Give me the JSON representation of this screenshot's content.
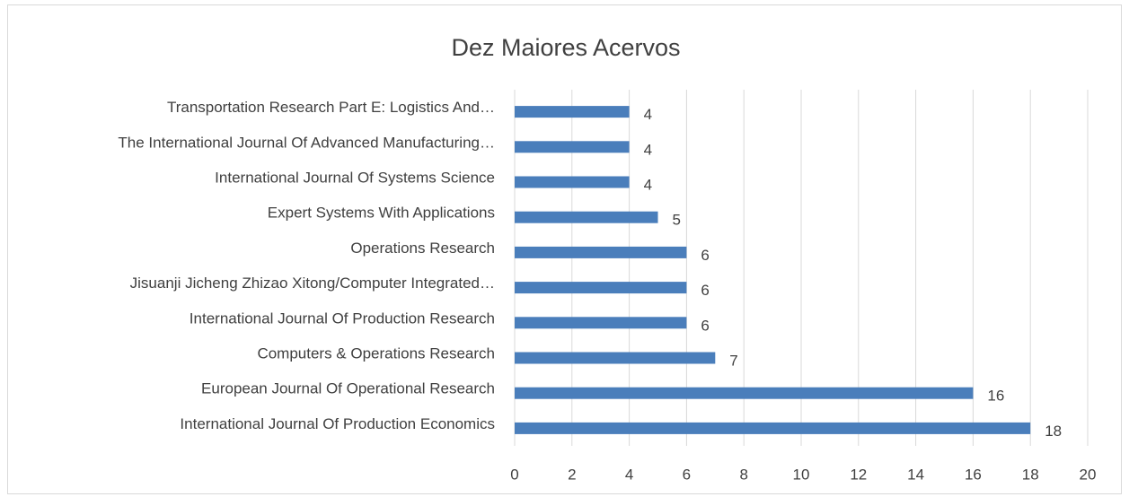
{
  "chart_data": {
    "type": "hbar",
    "title": "Dez Maiores Acervos",
    "categories": [
      "Transportation Research Part E: Logistics And…",
      "The International Journal Of Advanced Manufacturing…",
      "International Journal Of Systems Science",
      "Expert Systems With Applications",
      "Operations Research",
      "Jisuanji Jicheng Zhizao Xitong/Computer Integrated…",
      "International Journal Of Production Research",
      "Computers & Operations Research",
      "European Journal Of Operational Research",
      "International Journal Of Production Economics"
    ],
    "values": [
      4,
      4,
      4,
      5,
      6,
      6,
      6,
      7,
      16,
      18
    ],
    "color": "#4a7ebb",
    "xlim": [
      0,
      20
    ],
    "xticks": [
      0,
      2,
      4,
      6,
      8,
      10,
      12,
      14,
      16,
      18,
      20
    ],
    "grid": true
  }
}
